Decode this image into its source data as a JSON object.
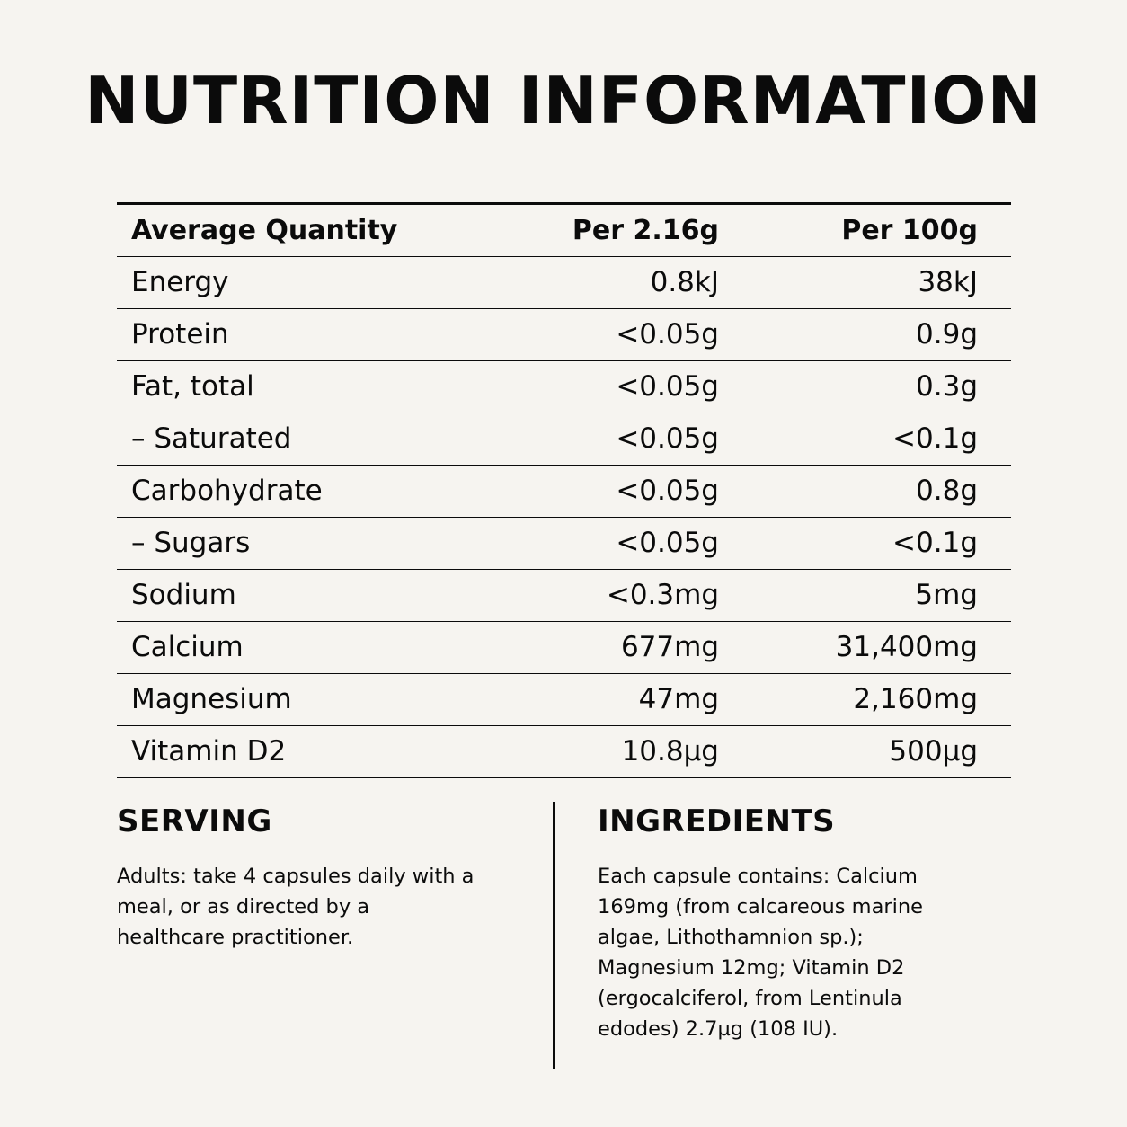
{
  "title": "NUTRITION INFORMATION",
  "table": {
    "headers": [
      "Average Quantity",
      "Per 2.16g",
      "Per 100g"
    ],
    "rows": [
      [
        "Energy",
        "0.8kJ",
        "38kJ"
      ],
      [
        "Protein",
        "<0.05g",
        "0.9g"
      ],
      [
        "Fat, total",
        "<0.05g",
        "0.3g"
      ],
      [
        "– Saturated",
        "<0.05g",
        "<0.1g"
      ],
      [
        "Carbohydrate",
        "<0.05g",
        "0.8g"
      ],
      [
        "– Sugars",
        "<0.05g",
        "<0.1g"
      ],
      [
        "Sodium",
        "<0.3mg",
        "5mg"
      ],
      [
        "Calcium",
        "677mg",
        "31,400mg"
      ],
      [
        "Magnesium",
        "47mg",
        "2,160mg"
      ],
      [
        "Vitamin D2",
        "10.8µg",
        "500µg"
      ]
    ]
  },
  "serving": {
    "heading": "SERVING",
    "lines": [
      "Adults: take 4 capsules daily with a",
      "meal, or as directed by a",
      "healthcare practitioner."
    ]
  },
  "ingredients": {
    "heading": "INGREDIENTS",
    "lines": [
      "Each capsule contains: Calcium",
      "169mg (from calcareous marine",
      "algae, Lithothamnion sp.);",
      "Magnesium 12mg; Vitamin D2",
      "(ergocalciferol, from Lentinula",
      "edodes) 2.7µg (108 IU)."
    ]
  }
}
